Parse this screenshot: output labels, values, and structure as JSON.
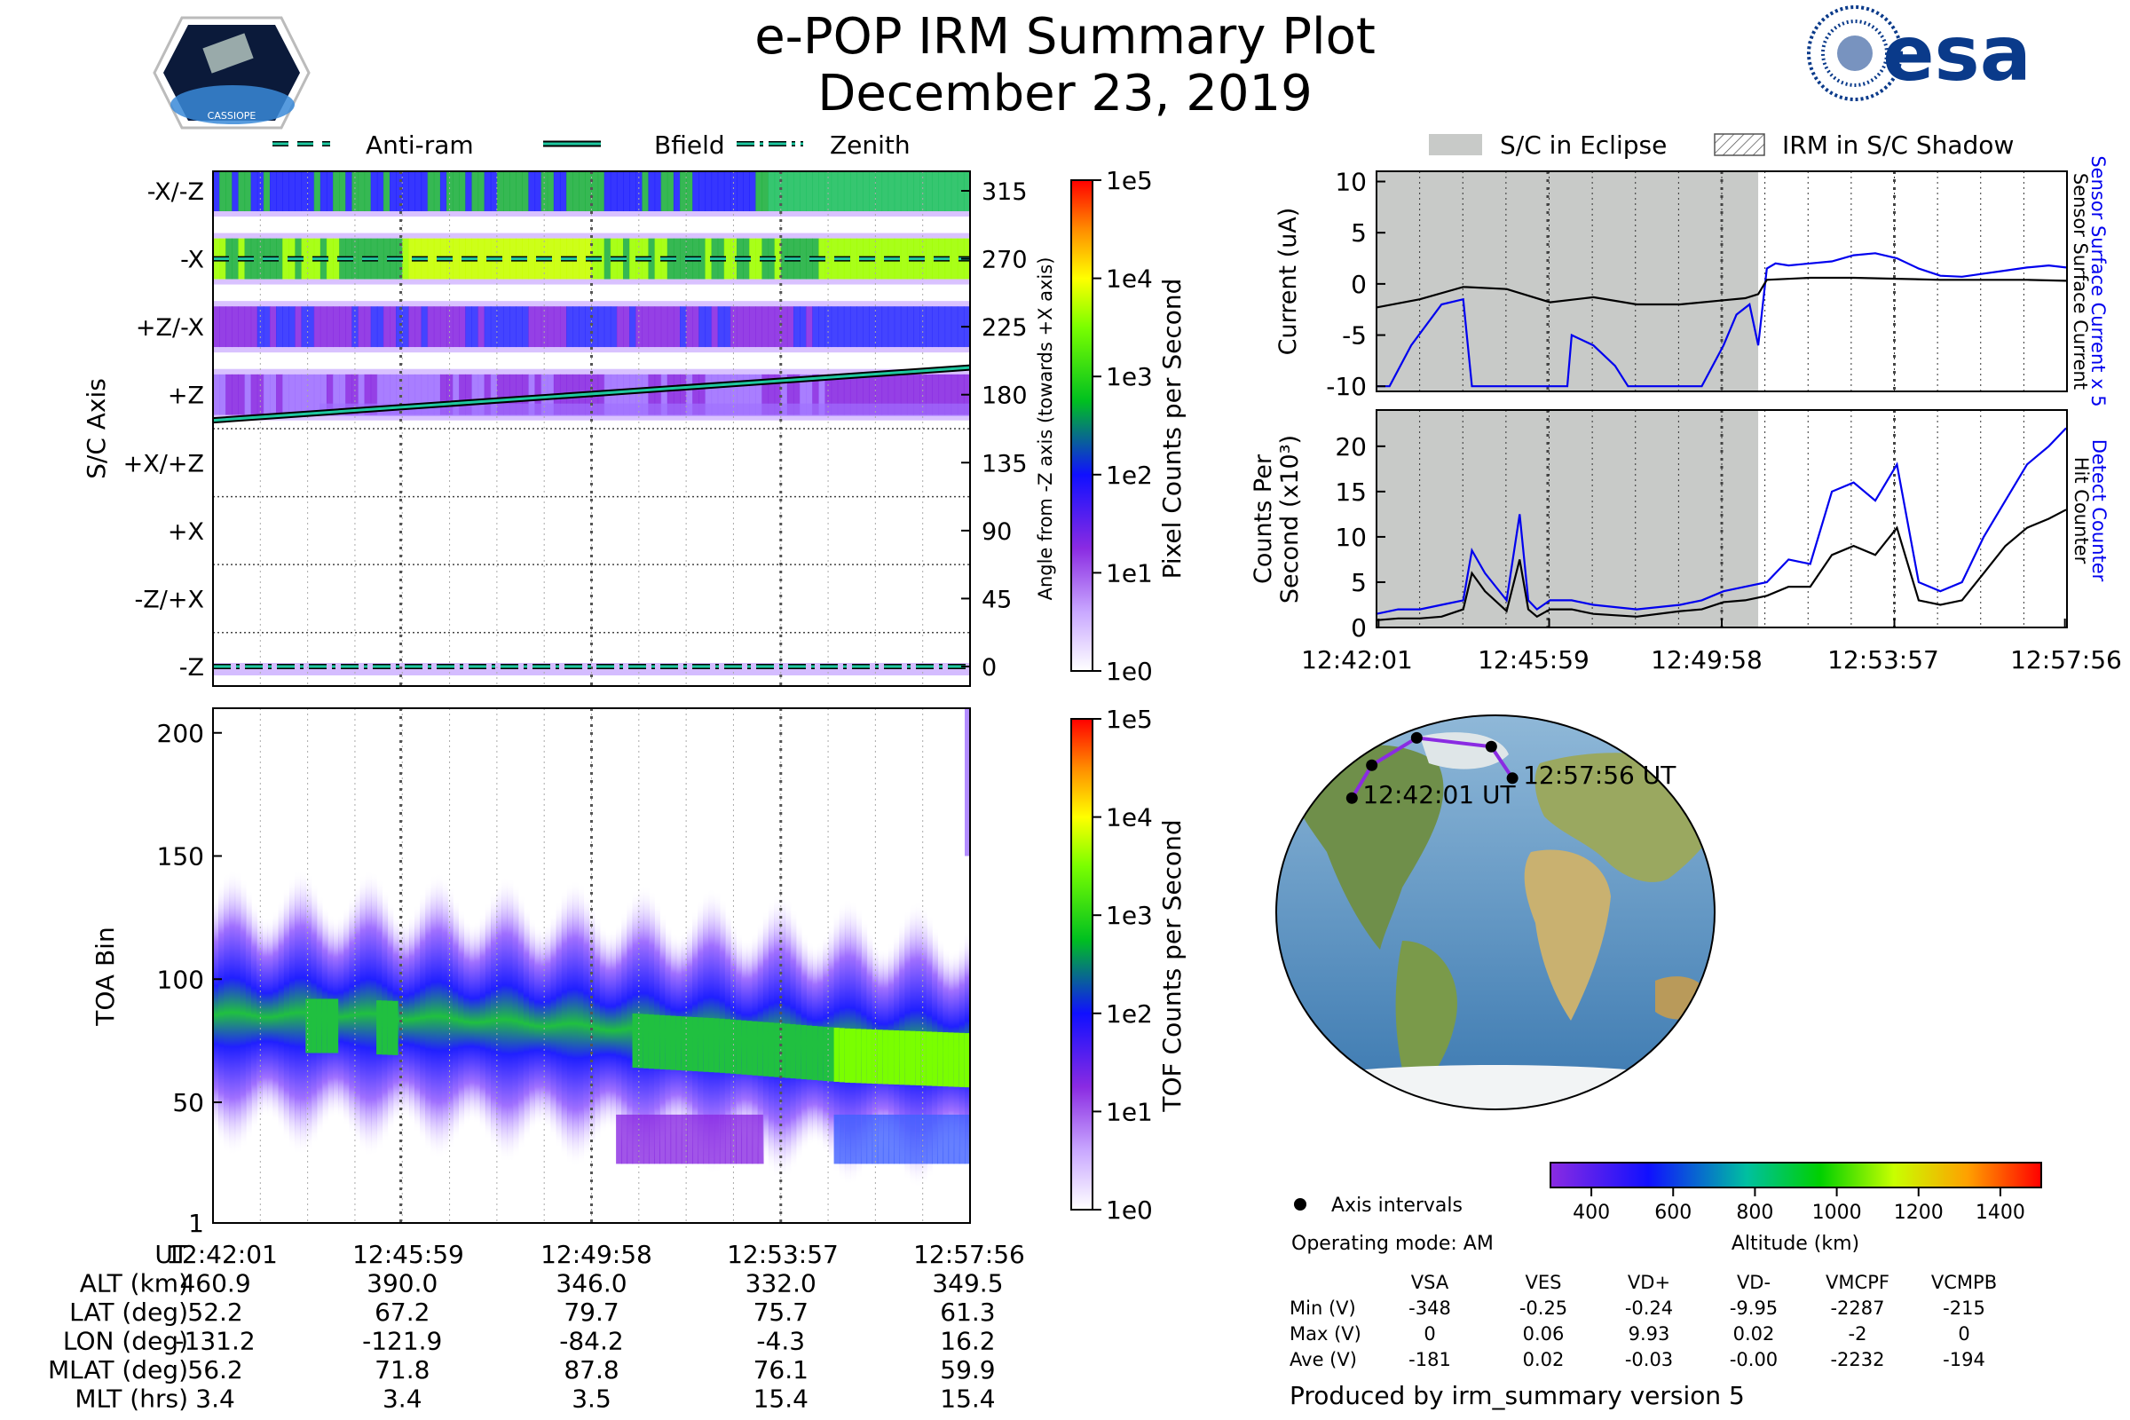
{
  "header": {
    "title": "e-POP IRM Summary Plot",
    "date": "December 23, 2019",
    "left_logo_text": "CASSIOPE",
    "right_logo_text": "esa"
  },
  "colors": {
    "antiram": "#1ec8a0",
    "bfield": "#1ec8a0",
    "zenith": "#1ec8a0",
    "eclipse": "#c8cac8",
    "sensor_current": "#0000ee",
    "hit_counter": "#000000",
    "orbit": "#8a2be2"
  },
  "legend_left": {
    "antiram": "Anti-ram",
    "bfield": "Bfield",
    "zenith": "Zenith"
  },
  "legend_right": {
    "eclipse": "S/C in Eclipse",
    "shadow": "IRM in S/C Shadow"
  },
  "time_ticks": [
    "12:42:01",
    "12:45:59",
    "12:49:58",
    "12:53:57",
    "12:57:56"
  ],
  "chart_data": [
    {
      "name": "pixel",
      "type": "heatmap",
      "ylabel": "S/C Axis",
      "ylabel_right": "Angle from -Z axis (towards +X axis)",
      "categories": [
        "-X/-Z",
        "-X",
        "+Z/-X",
        "+Z",
        "+X/+Z",
        "+X",
        "-Z/+X",
        "-Z"
      ],
      "angle_ticks": [
        "315",
        "270",
        "225",
        "180",
        "135",
        "90",
        "45",
        "0"
      ],
      "colorbar": {
        "label": "Pixel Counts per Second",
        "ticks": [
          "1e0",
          "1e1",
          "1e2",
          "1e3",
          "1e4",
          "1e5"
        ]
      },
      "bands": [
        {
          "axis": "-X/-Z",
          "level": 1.7
        },
        {
          "axis": "-X",
          "level": 2.6
        },
        {
          "axis": "+Z/-X",
          "level": 1.5
        },
        {
          "axis": "+Z",
          "level": 1.1
        }
      ],
      "bfield_angle": {
        "start": 163,
        "end": 198
      },
      "antiram_angle": 270,
      "zenith_angle": 0
    },
    {
      "name": "tof",
      "type": "heatmap",
      "ylabel": "TOA Bin",
      "yticks": [
        "1",
        "50",
        "100",
        "150",
        "200"
      ],
      "ylim": [
        1,
        210
      ],
      "colorbar": {
        "label": "TOF Counts per Second",
        "ticks": [
          "1e0",
          "1e1",
          "1e2",
          "1e3",
          "1e4",
          "1e5"
        ]
      },
      "core_center": [
        80,
        80,
        78,
        75,
        72,
        68,
        66
      ],
      "secondary_population": {
        "toa_range": [
          25,
          45
        ]
      }
    },
    {
      "name": "current",
      "type": "line",
      "ylabel": "Current (uA)",
      "ylabel_right_1": "Sensor Surface Current x 5",
      "ylabel_right_2": "Sensor Surface Current",
      "yticks": [
        "10",
        "5",
        "0",
        "-5",
        "-10"
      ],
      "ylim": [
        -10.5,
        11
      ],
      "eclipse_span_min": [
        0,
        8.8
      ],
      "series": [
        {
          "name": "Sensor Surface Current x 5",
          "x": [
            0,
            0.3,
            0.8,
            1.5,
            2.0,
            2.2,
            2.5,
            3.0,
            3.5,
            4.0,
            4.4,
            4.5,
            5.0,
            5.5,
            5.8,
            6.0,
            6.2,
            6.5,
            7.0,
            7.5,
            8.0,
            8.3,
            8.6,
            8.8,
            9.0,
            9.2,
            9.5,
            10,
            10.5,
            11,
            11.5,
            12,
            12.5,
            13,
            13.5,
            14,
            14.5,
            15,
            15.5,
            15.9
          ],
          "y": [
            -10,
            -10,
            -6,
            -2,
            -1.5,
            -10,
            -10,
            -10,
            -10,
            -10,
            -10,
            -5,
            -6,
            -8,
            -10,
            -10,
            -10,
            -10,
            -10,
            -10,
            -6,
            -3,
            -2,
            -6,
            1.5,
            2,
            1.8,
            2,
            2.2,
            2.8,
            3,
            2.5,
            1.5,
            0.8,
            0.7,
            1.0,
            1.3,
            1.6,
            1.8,
            1.6
          ]
        },
        {
          "name": "Sensor Surface Current",
          "x": [
            0,
            1,
            2,
            3,
            4,
            5,
            6,
            7,
            8,
            8.5,
            8.8,
            9.0,
            10,
            11,
            12,
            13,
            14,
            15,
            15.9
          ],
          "y": [
            -2.3,
            -1.5,
            -0.3,
            -0.5,
            -1.8,
            -1.3,
            -2.0,
            -2.0,
            -1.6,
            -1.4,
            -1.0,
            0.4,
            0.6,
            0.6,
            0.5,
            0.4,
            0.4,
            0.4,
            0.3
          ]
        }
      ]
    },
    {
      "name": "counts",
      "type": "line",
      "ylabel_1": "Counts Per",
      "ylabel_2": "Second (x10³)",
      "ylabel_right_1": "Detect Counter",
      "ylabel_right_2": "Hit Counter",
      "yticks": [
        "20",
        "15",
        "10",
        "5",
        "0"
      ],
      "ylim": [
        0,
        24
      ],
      "series": [
        {
          "name": "Detect Counter",
          "x": [
            0,
            0.5,
            1,
            1.5,
            2,
            2.2,
            2.5,
            3,
            3.3,
            3.5,
            3.7,
            4,
            4.5,
            5,
            6,
            7,
            7.5,
            8,
            8.5,
            9,
            9.5,
            10,
            10.5,
            11,
            11.5,
            12,
            12.5,
            13,
            13.5,
            14,
            14.5,
            15,
            15.5,
            15.9
          ],
          "y": [
            1.5,
            2,
            2,
            2.5,
            3,
            8.5,
            6,
            3,
            12.5,
            3,
            2,
            3,
            3,
            2.5,
            2,
            2.5,
            3,
            4,
            4.5,
            5,
            7.5,
            7,
            15,
            16,
            14,
            18,
            5,
            4,
            5,
            10,
            14,
            18,
            20,
            22
          ]
        },
        {
          "name": "Hit Counter",
          "x": [
            0,
            0.5,
            1,
            1.5,
            2,
            2.2,
            2.5,
            3,
            3.3,
            3.5,
            3.7,
            4,
            4.5,
            5,
            6,
            7,
            7.5,
            8,
            8.5,
            9,
            9.5,
            10,
            10.5,
            11,
            11.5,
            12,
            12.5,
            13,
            13.5,
            14,
            14.5,
            15,
            15.5,
            15.9
          ],
          "y": [
            0.8,
            1,
            1,
            1.2,
            2,
            6,
            4,
            1.8,
            7.5,
            2,
            1.2,
            2,
            2,
            1.5,
            1.2,
            1.8,
            2,
            2.8,
            3,
            3.5,
            4.5,
            4.5,
            8,
            9,
            8,
            11,
            3,
            2.5,
            3,
            6,
            9,
            11,
            12,
            13
          ]
        }
      ]
    },
    {
      "name": "map",
      "type": "map",
      "orbit_start_label": "12:42:01 UT",
      "orbit_end_label": "12:57:56 UT",
      "orbit_lonlat": [
        [
          -131.2,
          52.2
        ],
        [
          -121.9,
          67.2
        ],
        [
          -84.2,
          79.7
        ],
        [
          -4.3,
          75.7
        ],
        [
          16.2,
          61.3
        ]
      ],
      "legend_dot": "Axis intervals",
      "operating_mode": "Operating mode: AM",
      "colorbar": {
        "label": "Altitude (km)",
        "ticks": [
          "400",
          "600",
          "800",
          "1000",
          "1200",
          "1400"
        ]
      }
    }
  ],
  "bottom_table": {
    "rows": [
      {
        "label": "UT",
        "values": [
          "12:42:01",
          "12:45:59",
          "12:49:58",
          "12:53:57",
          "12:57:56"
        ]
      },
      {
        "label": "ALT (km)",
        "values": [
          "460.9",
          "390.0",
          "346.0",
          "332.0",
          "349.5"
        ]
      },
      {
        "label": "LAT (deg)",
        "values": [
          "52.2",
          "67.2",
          "79.7",
          "75.7",
          "61.3"
        ]
      },
      {
        "label": "LON (deg)",
        "values": [
          "-131.2",
          "-121.9",
          "-84.2",
          "-4.3",
          "16.2"
        ]
      },
      {
        "label": "MLAT (deg)",
        "values": [
          "56.2",
          "71.8",
          "87.8",
          "76.1",
          "59.9"
        ]
      },
      {
        "label": "MLT (hrs)",
        "values": [
          "3.4",
          "3.4",
          "3.5",
          "15.4",
          "15.4"
        ]
      }
    ]
  },
  "voltage_table": {
    "columns": [
      "VSA",
      "VES",
      "VD+",
      "VD-",
      "VMCPF",
      "VCMPB"
    ],
    "rows": [
      {
        "label": "Min (V)",
        "values": [
          "-348",
          "-0.25",
          "-0.24",
          "-9.95",
          "-2287",
          "-215"
        ]
      },
      {
        "label": "Max (V)",
        "values": [
          "0",
          "0.06",
          "9.93",
          "0.02",
          "-2",
          "0"
        ]
      },
      {
        "label": "Ave (V)",
        "values": [
          "-181",
          "0.02",
          "-0.03",
          "-0.00",
          "-2232",
          "-194"
        ]
      }
    ]
  },
  "footer": "Produced by irm_summary version 5"
}
